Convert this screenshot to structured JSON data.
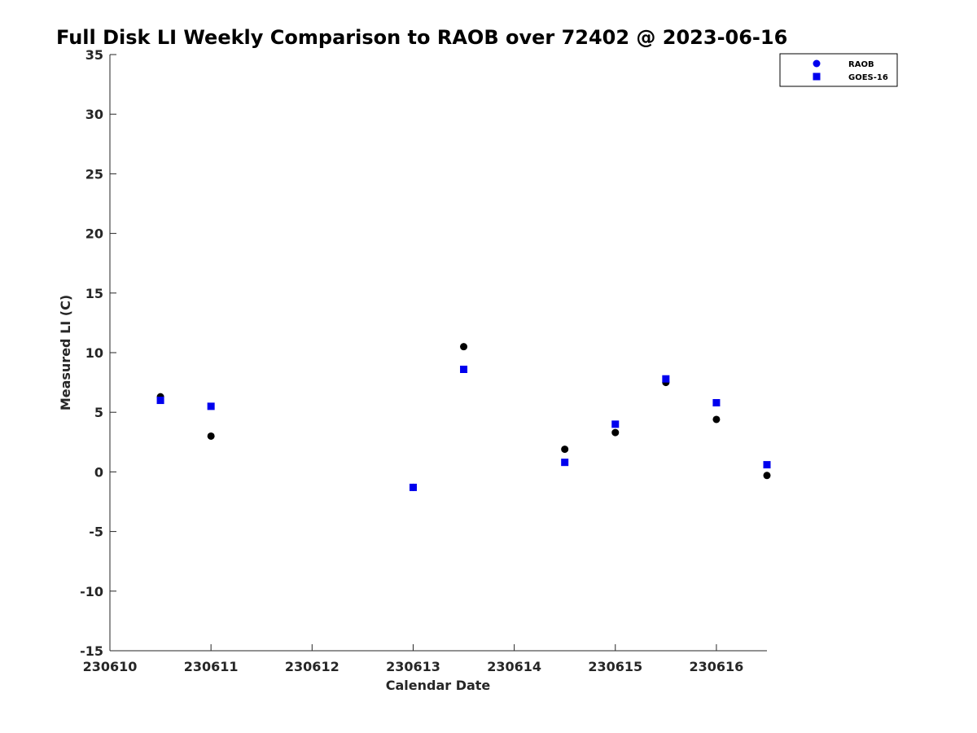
{
  "chart_data": {
    "type": "scatter",
    "title": "Full Disk LI Weekly Comparison to RAOB over 72402 @ 2023-06-16",
    "xlabel": "Calendar Date",
    "ylabel": "Measured LI (C)",
    "xlim": [
      "230610",
      "230616.5"
    ],
    "ylim": [
      -15,
      35
    ],
    "x_tick_labels": [
      "230610",
      "230611",
      "230612",
      "230613",
      "230614",
      "230615",
      "230616"
    ],
    "y_ticks": [
      35,
      30,
      25,
      20,
      15,
      10,
      5,
      0,
      -5,
      -10,
      -15
    ],
    "grid": false,
    "legend_position": "top-right",
    "series": [
      {
        "name": "RAOB",
        "marker": "circle",
        "color": "#000000",
        "legend_color": "#0000ee",
        "x": [
          230610.5,
          230611,
          230613,
          230613.5,
          230614.5,
          230615,
          230615.5,
          230616,
          230616.5
        ],
        "y": [
          6.3,
          3.0,
          -1.3,
          10.5,
          1.9,
          3.3,
          7.5,
          4.4,
          -0.3
        ]
      },
      {
        "name": "GOES-16",
        "marker": "square",
        "color": "#0000ee",
        "x": [
          230610.5,
          230611,
          230613,
          230613.5,
          230614.5,
          230615,
          230615.5,
          230616,
          230616.5
        ],
        "y": [
          6.0,
          5.5,
          -1.3,
          8.6,
          0.8,
          4.0,
          7.8,
          5.8,
          0.6
        ]
      }
    ]
  }
}
